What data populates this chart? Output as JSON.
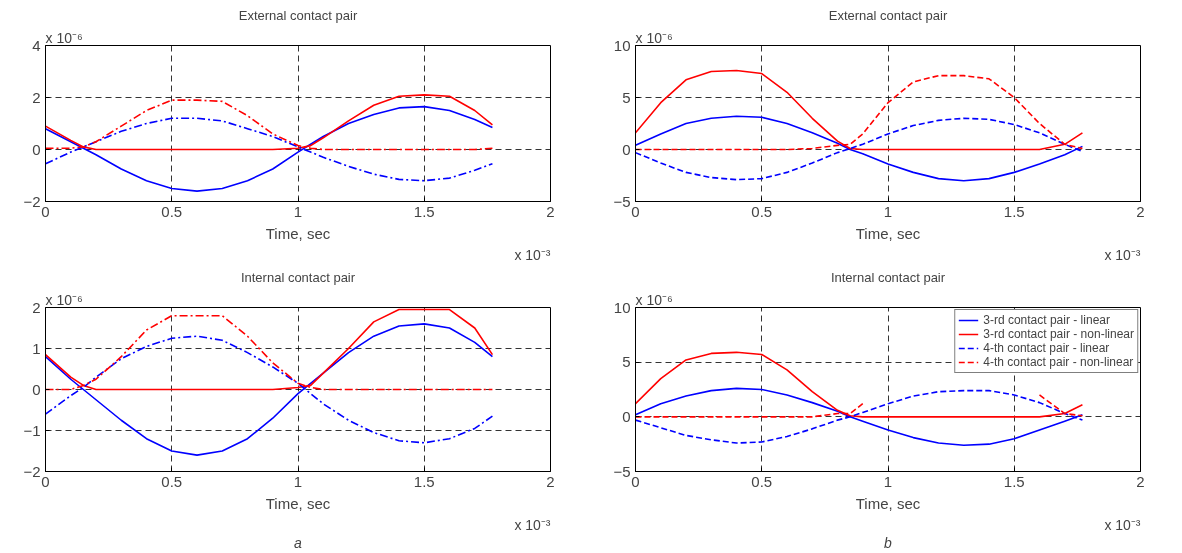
{
  "chart_data": [
    {
      "type": "line",
      "title": "External contact pair",
      "xlabel": "Time, sec",
      "annotations": [
        "x 10⁻⁶",
        "x 10⁻³"
      ],
      "x": [
        0,
        0.1,
        0.15,
        0.2,
        0.3,
        0.4,
        0.5,
        0.6,
        0.7,
        0.8,
        0.9,
        1.0,
        1.05,
        1.1,
        1.2,
        1.3,
        1.4,
        1.5,
        1.6,
        1.7,
        1.77
      ],
      "xlim": [
        0,
        2
      ],
      "xticks": [
        0,
        0.5,
        1,
        1.5,
        2
      ],
      "ylim": [
        -2,
        4
      ],
      "yticks": [
        -2,
        0,
        2,
        4
      ],
      "grid": true,
      "legend": false,
      "series": [
        {
          "color": "#0000ff",
          "line_style": "solid",
          "values": [
            0.8,
            0.3,
            0.05,
            -0.2,
            -0.75,
            -1.2,
            -1.5,
            -1.6,
            -1.5,
            -1.2,
            -0.75,
            -0.1,
            0.2,
            0.5,
            1.0,
            1.35,
            1.6,
            1.65,
            1.5,
            1.15,
            0.85
          ]
        },
        {
          "color": "#ff0000",
          "line_style": "solid",
          "values": [
            0.9,
            0.35,
            0.1,
            0,
            0,
            0,
            0,
            0,
            0,
            0,
            0,
            0.05,
            0.15,
            0.45,
            1.1,
            1.7,
            2.05,
            2.1,
            2.05,
            1.5,
            0.95
          ]
        },
        {
          "color": "#0000ff",
          "line_style": "dashdot",
          "values": [
            -0.55,
            -0.1,
            0.1,
            0.3,
            0.7,
            1.0,
            1.2,
            1.2,
            1.1,
            0.8,
            0.5,
            0.1,
            -0.1,
            -0.3,
            -0.65,
            -0.95,
            -1.15,
            -1.2,
            -1.1,
            -0.8,
            -0.55
          ]
        },
        {
          "color": "#ff0000",
          "line_style": "dashdot",
          "values": [
            0.05,
            0.05,
            0.1,
            0.3,
            0.9,
            1.5,
            1.9,
            1.9,
            1.85,
            1.3,
            0.6,
            0.15,
            0.05,
            0,
            0,
            0,
            0,
            0,
            0,
            0,
            0.05
          ]
        }
      ]
    },
    {
      "type": "line",
      "title": "External contact pair",
      "xlabel": "Time, sec",
      "annotations": [
        "x 10⁻⁶",
        "x 10⁻³"
      ],
      "x": [
        0,
        0.1,
        0.2,
        0.3,
        0.4,
        0.5,
        0.6,
        0.7,
        0.8,
        0.85,
        0.9,
        1.0,
        1.1,
        1.2,
        1.3,
        1.4,
        1.5,
        1.6,
        1.7,
        1.77
      ],
      "xlim": [
        0,
        2
      ],
      "xticks": [
        0,
        0.5,
        1,
        1.5,
        2
      ],
      "ylim": [
        -5,
        10
      ],
      "yticks": [
        -5,
        0,
        5,
        10
      ],
      "grid": true,
      "legend": false,
      "series": [
        {
          "color": "#0000ff",
          "line_style": "solid",
          "values": [
            0.4,
            1.5,
            2.5,
            3.0,
            3.2,
            3.1,
            2.5,
            1.6,
            0.6,
            0,
            -0.4,
            -1.4,
            -2.2,
            -2.8,
            -3.0,
            -2.8,
            -2.2,
            -1.4,
            -0.5,
            0.3
          ]
        },
        {
          "color": "#ff0000",
          "line_style": "solid",
          "values": [
            1.6,
            4.5,
            6.7,
            7.5,
            7.6,
            7.3,
            5.5,
            3.0,
            0.8,
            0.1,
            0,
            0,
            0,
            0,
            0,
            0,
            0,
            0,
            0.5,
            1.6
          ]
        },
        {
          "color": "#0000ff",
          "line_style": "dashed",
          "values": [
            -0.3,
            -1.3,
            -2.2,
            -2.7,
            -2.9,
            -2.8,
            -2.2,
            -1.3,
            -0.3,
            0.1,
            0.5,
            1.5,
            2.3,
            2.8,
            3.0,
            2.9,
            2.4,
            1.6,
            0.5,
            -0.2
          ]
        },
        {
          "color": "#ff0000",
          "line_style": "dashed",
          "values": [
            0,
            0,
            0,
            0,
            0,
            0,
            0,
            0.1,
            0.4,
            0.5,
            1.5,
            4.5,
            6.5,
            7.1,
            7.1,
            6.8,
            5.0,
            2.5,
            0.5,
            0.1
          ]
        }
      ]
    },
    {
      "type": "line",
      "title": "Internal contact pair",
      "xlabel": "Time, sec",
      "annotations": [
        "x 10⁻⁶",
        "x 10⁻³",
        "a"
      ],
      "x": [
        0,
        0.1,
        0.15,
        0.2,
        0.3,
        0.4,
        0.5,
        0.6,
        0.7,
        0.8,
        0.9,
        1.0,
        1.05,
        1.1,
        1.2,
        1.3,
        1.4,
        1.5,
        1.6,
        1.7,
        1.77
      ],
      "xlim": [
        0,
        2
      ],
      "xticks": [
        0,
        0.5,
        1,
        1.5,
        2
      ],
      "ylim": [
        -2,
        2
      ],
      "yticks": [
        -2,
        -1,
        0,
        1,
        2
      ],
      "grid": true,
      "legend": false,
      "series": [
        {
          "color": "#0000ff",
          "line_style": "solid",
          "values": [
            0.8,
            0.25,
            0.0,
            -0.25,
            -0.75,
            -1.2,
            -1.5,
            -1.6,
            -1.5,
            -1.2,
            -0.7,
            -0.1,
            0.15,
            0.4,
            0.9,
            1.3,
            1.55,
            1.6,
            1.5,
            1.15,
            0.8
          ]
        },
        {
          "color": "#ff0000",
          "line_style": "solid",
          "values": [
            0.85,
            0.3,
            0.1,
            0,
            0,
            0,
            0,
            0,
            0,
            0,
            0,
            0.05,
            0.1,
            0.4,
            1.0,
            1.65,
            1.95,
            1.95,
            1.95,
            1.5,
            0.85
          ]
        },
        {
          "color": "#0000ff",
          "line_style": "dashdot",
          "values": [
            -0.6,
            -0.15,
            0.05,
            0.3,
            0.75,
            1.05,
            1.25,
            1.3,
            1.2,
            0.9,
            0.55,
            0.15,
            -0.1,
            -0.35,
            -0.75,
            -1.05,
            -1.25,
            -1.3,
            -1.2,
            -0.95,
            -0.65
          ]
        },
        {
          "color": "#ff0000",
          "line_style": "dashdot",
          "values": [
            0,
            0,
            0.1,
            0.25,
            0.8,
            1.45,
            1.8,
            1.8,
            1.8,
            1.3,
            0.65,
            0.15,
            0.05,
            0,
            0,
            0,
            0,
            0,
            0,
            0,
            0
          ]
        }
      ]
    },
    {
      "type": "line",
      "title": "Internal contact pair",
      "xlabel": "Time, sec",
      "annotations": [
        "x 10⁻⁶",
        "x 10⁻³",
        "b"
      ],
      "x": [
        0,
        0.1,
        0.2,
        0.3,
        0.4,
        0.5,
        0.6,
        0.7,
        0.8,
        0.85,
        0.9,
        1.0,
        1.1,
        1.2,
        1.3,
        1.4,
        1.5,
        1.6,
        1.7,
        1.77
      ],
      "xlim": [
        0,
        2
      ],
      "xticks": [
        0,
        0.5,
        1,
        1.5,
        2
      ],
      "ylim": [
        -5,
        10
      ],
      "yticks": [
        -5,
        0,
        5,
        10
      ],
      "grid": true,
      "legend": "top right",
      "series": [
        {
          "name": "3-rd contact pair - linear",
          "color": "#0000ff",
          "line_style": "solid",
          "values": [
            0.2,
            1.2,
            1.9,
            2.4,
            2.6,
            2.5,
            2.0,
            1.3,
            0.5,
            0,
            -0.4,
            -1.2,
            -1.9,
            -2.4,
            -2.6,
            -2.5,
            -2.0,
            -1.2,
            -0.4,
            0.2
          ]
        },
        {
          "name": "3-rd contact pair - non-linear",
          "color": "#ff0000",
          "line_style": "solid",
          "values": [
            1.2,
            3.5,
            5.2,
            5.8,
            5.9,
            5.7,
            4.3,
            2.3,
            0.6,
            0.1,
            0,
            0,
            0,
            0,
            0,
            0,
            0,
            0,
            0.3,
            1.1
          ]
        },
        {
          "name": "4-th contact pair - linear",
          "color": "#0000ff",
          "line_style": "dashed",
          "values": [
            -0.3,
            -1.0,
            -1.7,
            -2.1,
            -2.4,
            -2.3,
            -1.8,
            -1.1,
            -0.3,
            0,
            0.4,
            1.2,
            1.9,
            2.3,
            2.4,
            2.4,
            2.0,
            1.3,
            0.3,
            -0.3
          ]
        },
        {
          "name": "4-th contact pair - non-linear",
          "color": "#ff0000",
          "line_style": "dashed",
          "values": [
            0,
            0,
            0,
            0,
            0,
            0,
            0,
            0,
            0.3,
            0.3,
            1.2,
            null,
            null,
            null,
            null,
            null,
            null,
            2.0,
            0.3,
            0.1
          ]
        }
      ]
    }
  ]
}
